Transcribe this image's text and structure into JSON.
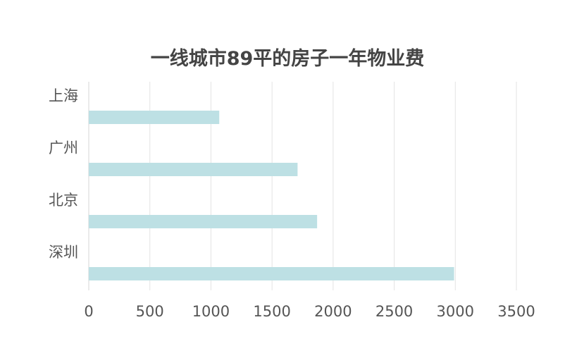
{
  "chart_data": {
    "type": "bar",
    "orientation": "horizontal",
    "title": "一线城市89平的房子一年物业费",
    "categories": [
      "上海",
      "广州",
      "北京",
      "深圳"
    ],
    "values": [
      1068,
      1709,
      1869,
      2990
    ],
    "xlim": [
      0,
      3500
    ],
    "xticks": [
      "0",
      "500",
      "1000",
      "1500",
      "2000",
      "2500",
      "3000",
      "3500"
    ],
    "grid": "vertical",
    "legend": "none",
    "bar_color": "#bde0e4"
  }
}
